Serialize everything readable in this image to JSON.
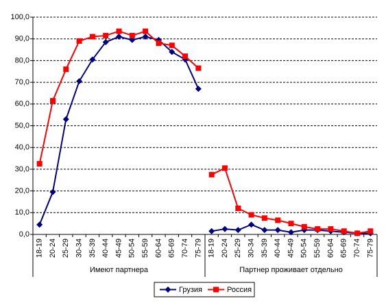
{
  "chart_data": {
    "type": "line",
    "groups": [
      {
        "label": "Имеют партнера",
        "categories": [
          "18-19",
          "20-24",
          "25-29",
          "30-34",
          "35-39",
          "40-44",
          "45-49",
          "50-54",
          "55-59",
          "60-64",
          "65-69",
          "70-74",
          "75-79"
        ]
      },
      {
        "label": "Партнер проживает отдельно",
        "categories": [
          "18-19",
          "20-24",
          "25-29",
          "30-34",
          "35-39",
          "40-44",
          "45-49",
          "50-54",
          "55-59",
          "60-64",
          "65-69",
          "70-74",
          "75-79"
        ]
      }
    ],
    "series": [
      {
        "name": "Грузия",
        "color": "#000080",
        "marker": "diamond",
        "values": [
          [
            4.5,
            19.5,
            53,
            70.5,
            80.5,
            88.5,
            91,
            89.5,
            91,
            89.5,
            84,
            80.5,
            67
          ],
          [
            1.5,
            2.5,
            2,
            4.5,
            2,
            2,
            1,
            2,
            2,
            1.5,
            1,
            0.5,
            0.5
          ]
        ]
      },
      {
        "name": "Россия",
        "color": "#ff0000",
        "marker": "square",
        "values": [
          [
            32.5,
            61.5,
            76,
            89,
            91,
            91.5,
            93.5,
            91.5,
            93.5,
            88,
            87,
            82,
            76.5
          ],
          [
            27.5,
            30.5,
            12,
            9,
            7.5,
            6.5,
            5,
            3.5,
            2.5,
            2.5,
            1.5,
            0.5,
            1.5
          ]
        ]
      }
    ],
    "ylim": [
      0,
      100
    ],
    "yticks": [
      {
        "value": 0,
        "label": "0,0"
      },
      {
        "value": 10,
        "label": "10,0"
      },
      {
        "value": 20,
        "label": "20,0"
      },
      {
        "value": 30,
        "label": "30,0"
      },
      {
        "value": 40,
        "label": "40,0"
      },
      {
        "value": 50,
        "label": "50,0"
      },
      {
        "value": 60,
        "label": "60,0"
      },
      {
        "value": 70,
        "label": "70,0"
      },
      {
        "value": 80,
        "label": "80,0"
      },
      {
        "value": 90,
        "label": "90,0"
      },
      {
        "value": 100,
        "label": "100,0"
      }
    ],
    "grid": true,
    "legend": "bottom"
  }
}
